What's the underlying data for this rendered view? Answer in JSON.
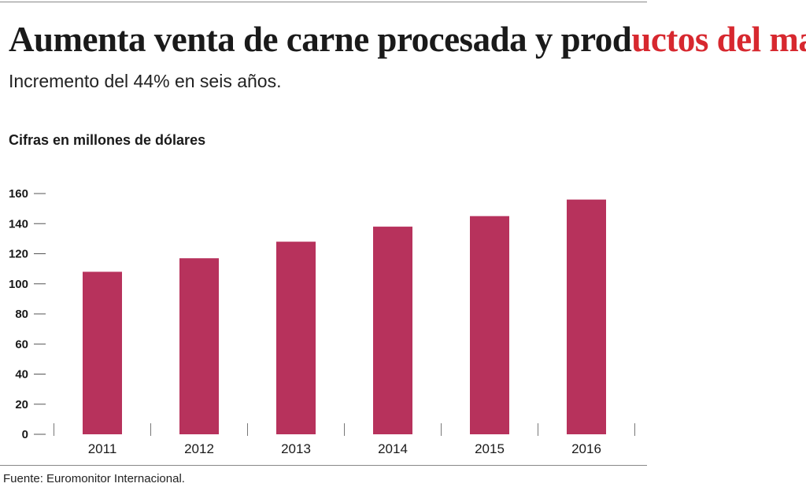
{
  "header": {
    "title_part1": "Aumenta venta de carne procesada y prod",
    "title_part2": "uctos del mar",
    "subtitle": "Incremento del 44% en seis años.",
    "unit_label": "Cifras en millones de dólares"
  },
  "footer": {
    "source": "Fuente: Euromonitor Internacional."
  },
  "colors": {
    "bar": "#b7325c",
    "title_accent": "#d7282f",
    "axis": "#555555"
  },
  "chart_data": {
    "type": "bar",
    "title": "Aumenta venta de carne procesada y productos del mar",
    "subtitle": "Incremento del 44% en seis años.",
    "ylabel": "Cifras en millones de dólares",
    "xlabel": "",
    "categories": [
      "2011",
      "2012",
      "2013",
      "2014",
      "2015",
      "2016"
    ],
    "values": [
      108,
      117,
      128,
      138,
      145,
      156
    ],
    "ylim": [
      0,
      160
    ],
    "yticks": [
      0,
      20,
      40,
      60,
      80,
      100,
      120,
      140,
      160
    ],
    "grid": false,
    "legend": "none"
  }
}
